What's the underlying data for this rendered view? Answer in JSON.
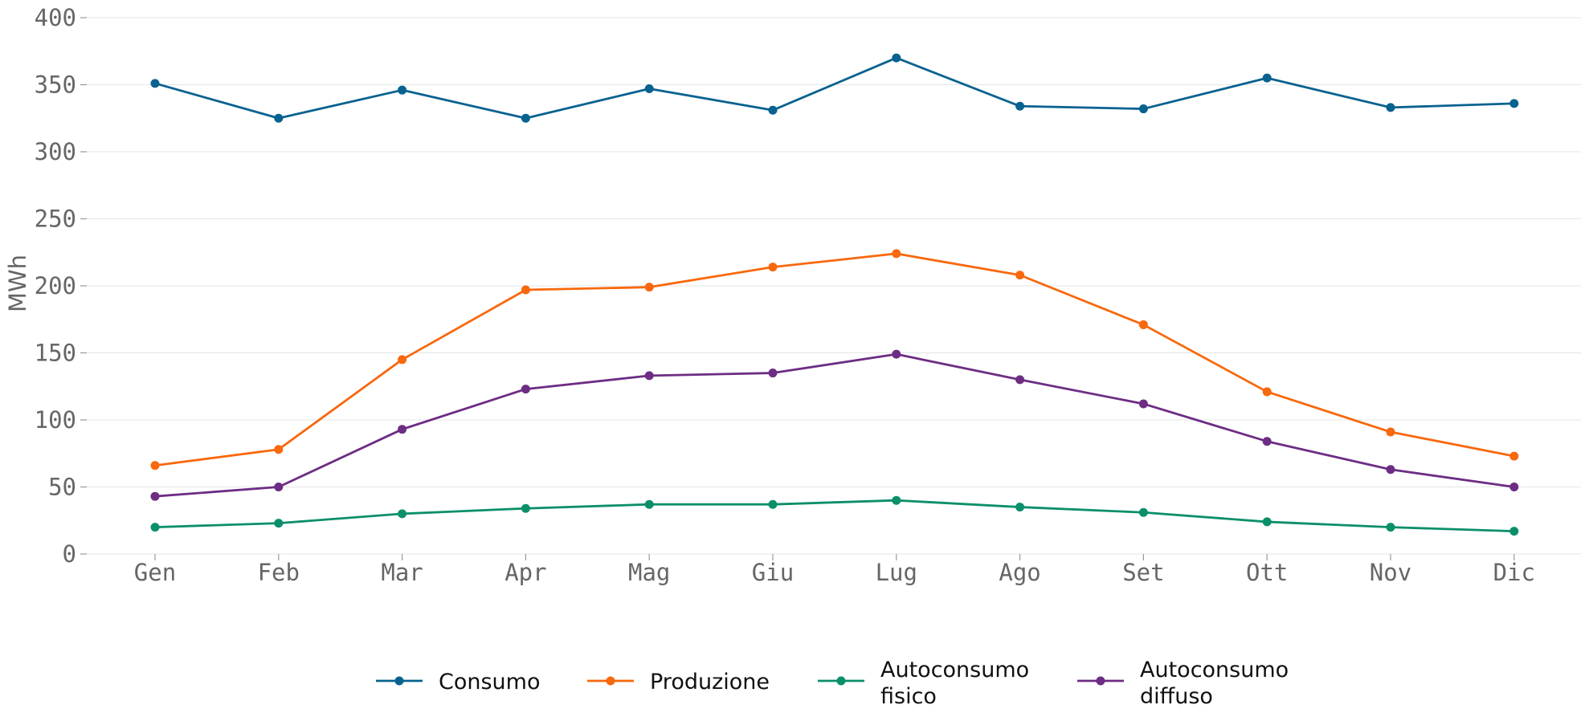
{
  "chart_data": {
    "type": "line",
    "title": "",
    "xlabel": "",
    "ylabel": "MWh",
    "categories": [
      "Gen",
      "Feb",
      "Mar",
      "Apr",
      "Mag",
      "Giu",
      "Lug",
      "Ago",
      "Set",
      "Ott",
      "Nov",
      "Dic"
    ],
    "ylim": [
      0,
      400
    ],
    "yticks": [
      "0",
      "50",
      "100",
      "150",
      "200",
      "250",
      "300",
      "350",
      "400"
    ],
    "grid": "horizontal",
    "legend_position": "bottom-center",
    "series": [
      {
        "name": "Consumo",
        "color": "#08628f",
        "values": [
          351,
          325,
          346,
          325,
          347,
          331,
          370,
          334,
          332,
          355,
          333,
          336
        ]
      },
      {
        "name": "Produzione",
        "color": "#f8680d",
        "values": [
          66,
          78,
          145,
          197,
          199,
          214,
          224,
          208,
          171,
          121,
          91,
          73
        ]
      },
      {
        "name": "Autoconsumo fisico",
        "color": "#0b8f6a",
        "values": [
          20,
          23,
          30,
          34,
          37,
          37,
          40,
          35,
          31,
          24,
          20,
          17
        ]
      },
      {
        "name": "Autoconsumo diffuso",
        "color": "#6d2d84",
        "values": [
          43,
          50,
          93,
          123,
          133,
          135,
          149,
          130,
          112,
          84,
          63,
          50
        ]
      }
    ]
  }
}
